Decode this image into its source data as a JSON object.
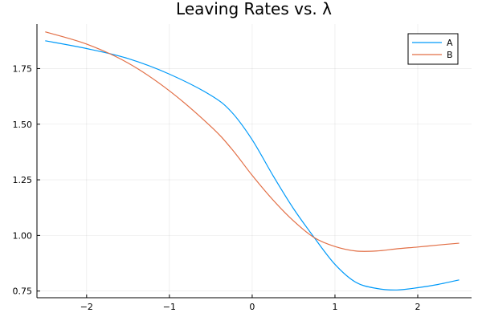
{
  "chart_data": {
    "type": "line",
    "title": "Leaving Rates vs. λ",
    "xlabel": "",
    "ylabel": "",
    "xlim": [
      -2.6,
      2.65
    ],
    "ylim": [
      0.72,
      1.95
    ],
    "xticks": [
      -2,
      -1,
      0,
      1,
      2
    ],
    "xtick_labels": [
      "−2",
      "−1",
      "0",
      "1",
      "2"
    ],
    "yticks": [
      0.75,
      1.0,
      1.25,
      1.5,
      1.75
    ],
    "ytick_labels": [
      "0.75",
      "1.00",
      "1.25",
      "1.50",
      "1.75"
    ],
    "grid": true,
    "legend_position": "top-right",
    "series": [
      {
        "name": "A",
        "color": "#009af9",
        "x": [
          -2.5,
          -2.0,
          -1.5,
          -1.0,
          -0.5,
          -0.25,
          0.0,
          0.25,
          0.5,
          0.75,
          1.0,
          1.25,
          1.5,
          1.75,
          2.0,
          2.25,
          2.5
        ],
        "y": [
          1.875,
          1.84,
          1.795,
          1.725,
          1.63,
          1.555,
          1.43,
          1.27,
          1.12,
          0.99,
          0.87,
          0.79,
          0.762,
          0.755,
          0.765,
          0.78,
          0.8
        ]
      },
      {
        "name": "B",
        "color": "#e26f46",
        "x": [
          -2.5,
          -2.0,
          -1.5,
          -1.0,
          -0.5,
          -0.25,
          0.0,
          0.25,
          0.5,
          0.75,
          1.0,
          1.25,
          1.5,
          1.75,
          2.0,
          2.25,
          2.5
        ],
        "y": [
          1.915,
          1.86,
          1.775,
          1.65,
          1.49,
          1.39,
          1.27,
          1.16,
          1.065,
          0.99,
          0.95,
          0.93,
          0.93,
          0.94,
          0.948,
          0.957,
          0.965
        ]
      }
    ]
  }
}
